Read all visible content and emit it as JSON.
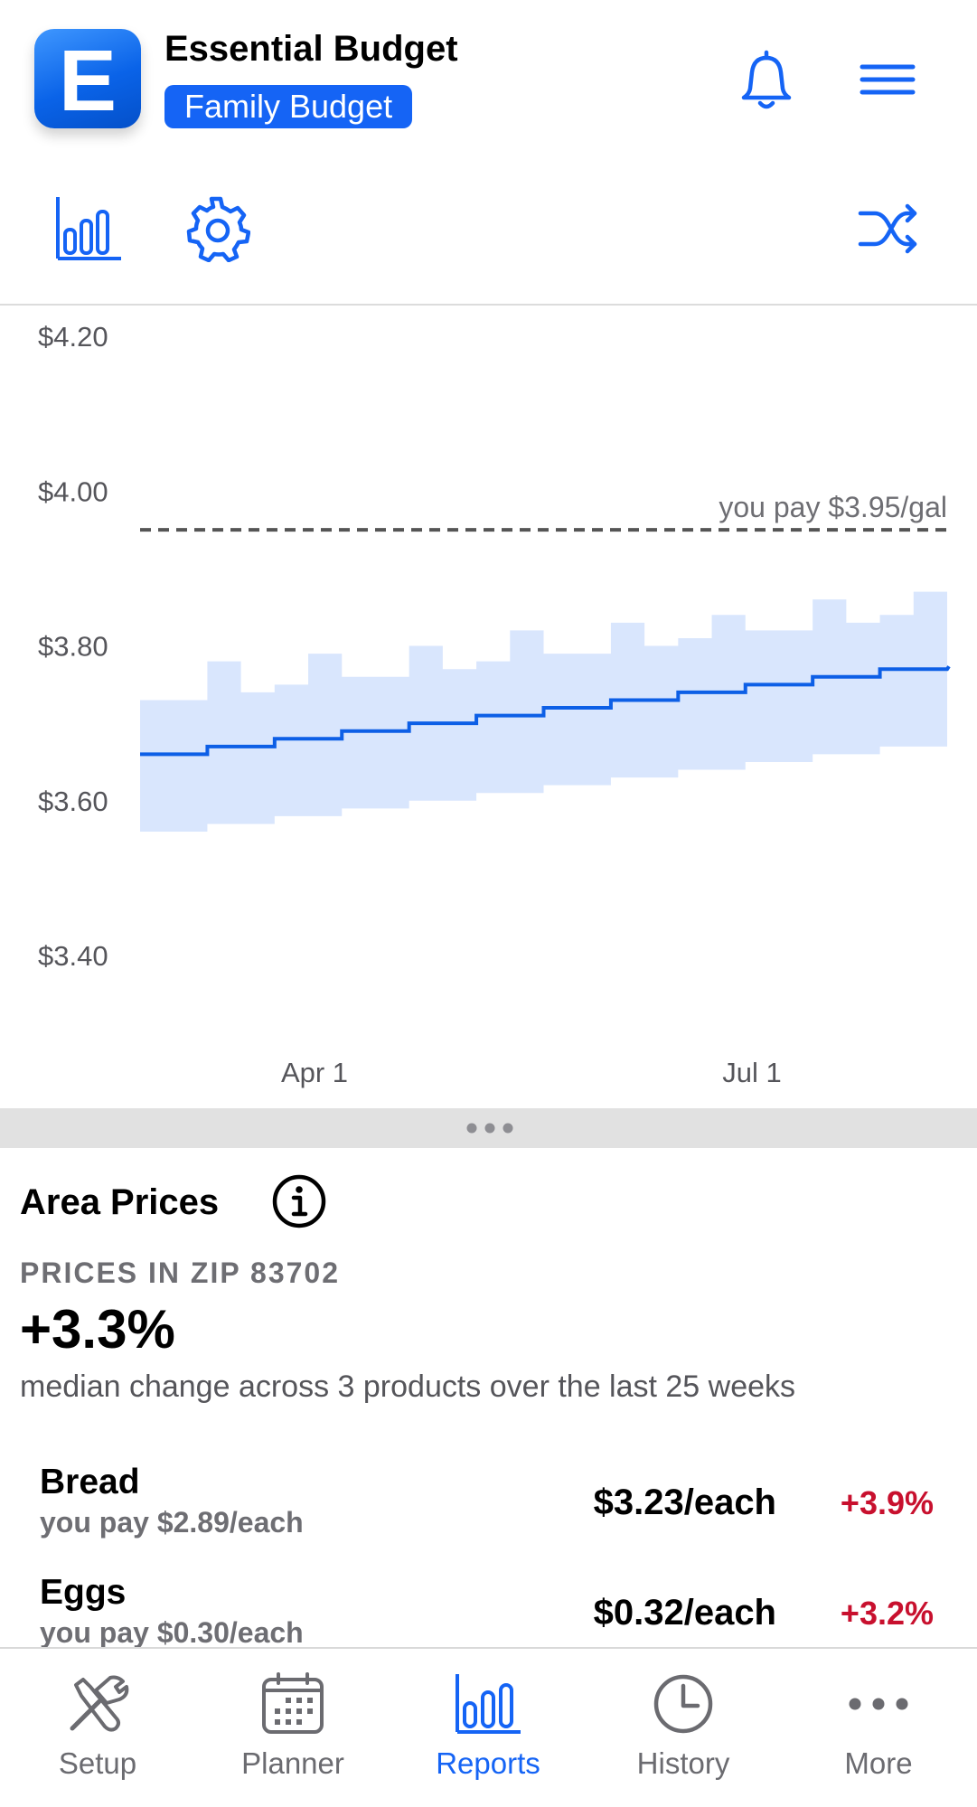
{
  "header": {
    "app_name": "Essential Budget",
    "logo_letter": "E",
    "budget_name": "Family Budget",
    "bell_icon": "bell-icon",
    "menu_icon": "hamburger-menu-icon"
  },
  "toolbar": {
    "icons": [
      "bar-chart-icon",
      "gear-icon",
      "shuffle-icon"
    ]
  },
  "colors": {
    "accent": "#1564f5",
    "band_fill": "#d9e6fd",
    "line": "#0d5fe6",
    "negative": "#c8102e",
    "muted": "#6e6e73"
  },
  "chart_data": {
    "type": "line",
    "y_ticks": [
      "$4.20",
      "$4.00",
      "$3.80",
      "$3.60",
      "$3.40"
    ],
    "x_ticks": [
      "Apr 1",
      "Jul 1"
    ],
    "ylim": [
      3.4,
      4.2
    ],
    "reference_line": {
      "value": 3.95,
      "label": "you pay $3.95/gal",
      "style": "dashed"
    },
    "series": [
      {
        "kind": "median-step",
        "values": [
          3.66,
          3.67,
          3.68,
          3.69,
          3.7,
          3.71,
          3.72,
          3.73,
          3.74,
          3.75,
          3.76,
          3.77
        ]
      }
    ],
    "band": {
      "lower": [
        3.56,
        3.56,
        3.57,
        3.57,
        3.58,
        3.58,
        3.59,
        3.59,
        3.6,
        3.6,
        3.61,
        3.61,
        3.62,
        3.62,
        3.63,
        3.63,
        3.64,
        3.64,
        3.65,
        3.65,
        3.66,
        3.66,
        3.67,
        3.67
      ],
      "upper": [
        3.73,
        3.73,
        3.78,
        3.74,
        3.75,
        3.79,
        3.76,
        3.76,
        3.8,
        3.77,
        3.78,
        3.82,
        3.79,
        3.79,
        3.83,
        3.8,
        3.81,
        3.84,
        3.82,
        3.82,
        3.86,
        3.83,
        3.84,
        3.87
      ]
    },
    "grid": false
  },
  "area_prices": {
    "title": "Area Prices",
    "info_icon": "info-icon",
    "zip_label": "PRICES IN ZIP 83702",
    "median_change": "+3.3%",
    "median_desc": "median change across 3 products over the last 25 weeks",
    "products": [
      {
        "name": "Bread",
        "you_pay": "you pay $2.89/each",
        "price": "$3.23/each",
        "change": "+3.9%"
      },
      {
        "name": "Eggs",
        "you_pay": "you pay $0.30/each",
        "price": "$0.32/each",
        "change": "+3.2%"
      }
    ]
  },
  "tabbar": {
    "tabs": [
      {
        "label": "Setup",
        "icon": "tools-icon",
        "active": false
      },
      {
        "label": "Planner",
        "icon": "calendar-icon",
        "active": false
      },
      {
        "label": "Reports",
        "icon": "bar-chart-icon",
        "active": true
      },
      {
        "label": "History",
        "icon": "clock-icon",
        "active": false
      },
      {
        "label": "More",
        "icon": "ellipsis-icon",
        "active": false
      }
    ]
  }
}
